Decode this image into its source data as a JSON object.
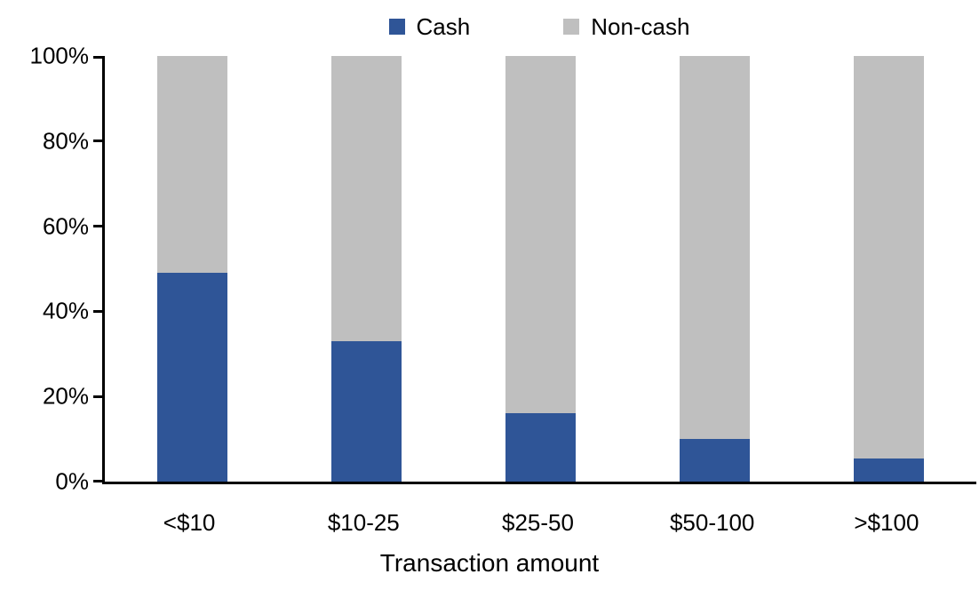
{
  "page": {
    "background": "#ffffff"
  },
  "chart_data": {
    "type": "bar",
    "subtype": "stacked-100-percent",
    "categories": [
      "<$10",
      "$10-25",
      "$25-50",
      "$50-100",
      ">$100"
    ],
    "series": [
      {
        "name": "Cash",
        "color": "#2F5597",
        "values": [
          49,
          33,
          16,
          10,
          5.5
        ]
      },
      {
        "name": "Non-cash",
        "color": "#BFBFBF",
        "values": [
          51,
          67,
          84,
          90,
          94.5
        ]
      }
    ],
    "title": "",
    "xlabel": "Transaction amount",
    "ylabel": "",
    "ylim": [
      0,
      100
    ],
    "yticks": [
      "0%",
      "20%",
      "40%",
      "60%",
      "80%",
      "100%"
    ],
    "grid": false,
    "legend_position": "top",
    "axis_color": "#000000",
    "text_color": "#000000"
  }
}
